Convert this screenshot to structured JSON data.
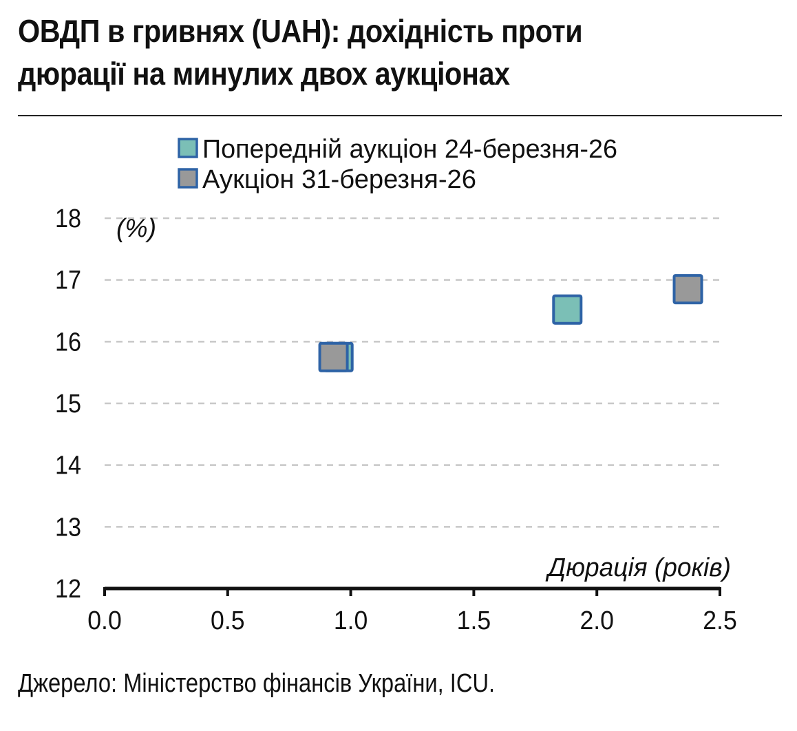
{
  "title": {
    "line1": "ОВДП в гривнях (UAH): дохідність проти",
    "line2": "дюрації на минулих двох аукціонах"
  },
  "source": "Джерело: Міністерство фінансів України, ICU.",
  "colors": {
    "previous_fill": "#7bbfb6",
    "current_fill": "#999999",
    "marker_stroke": "#2e63a6",
    "grid": "#c8c8c8",
    "axis": "#111111"
  },
  "chart_data": {
    "type": "scatter",
    "title": "ОВДП в гривнях (UAH): дохідність проти дюрації на минулих двох аукціонах",
    "xlabel": "Дюрація (років)",
    "ylabel": "(%)",
    "xlim": [
      0.0,
      2.5
    ],
    "ylim": [
      12,
      18
    ],
    "x_ticks": [
      "0.0",
      "0.5",
      "1.0",
      "1.5",
      "2.0",
      "2.5"
    ],
    "y_ticks": [
      "12",
      "13",
      "14",
      "15",
      "16",
      "17",
      "18"
    ],
    "grid": "horizontal dashed",
    "legend_position": "top-center",
    "series": [
      {
        "name": "Попередній аукціон 24-березня-26",
        "marker": "square",
        "color": "#7bbfb6",
        "points": [
          {
            "x": 0.95,
            "y": 15.75
          },
          {
            "x": 1.88,
            "y": 16.52
          }
        ]
      },
      {
        "name": "Аукціон 31-березня-26",
        "marker": "square",
        "color": "#999999",
        "points": [
          {
            "x": 0.93,
            "y": 15.75
          },
          {
            "x": 2.37,
            "y": 16.85
          }
        ]
      }
    ]
  }
}
